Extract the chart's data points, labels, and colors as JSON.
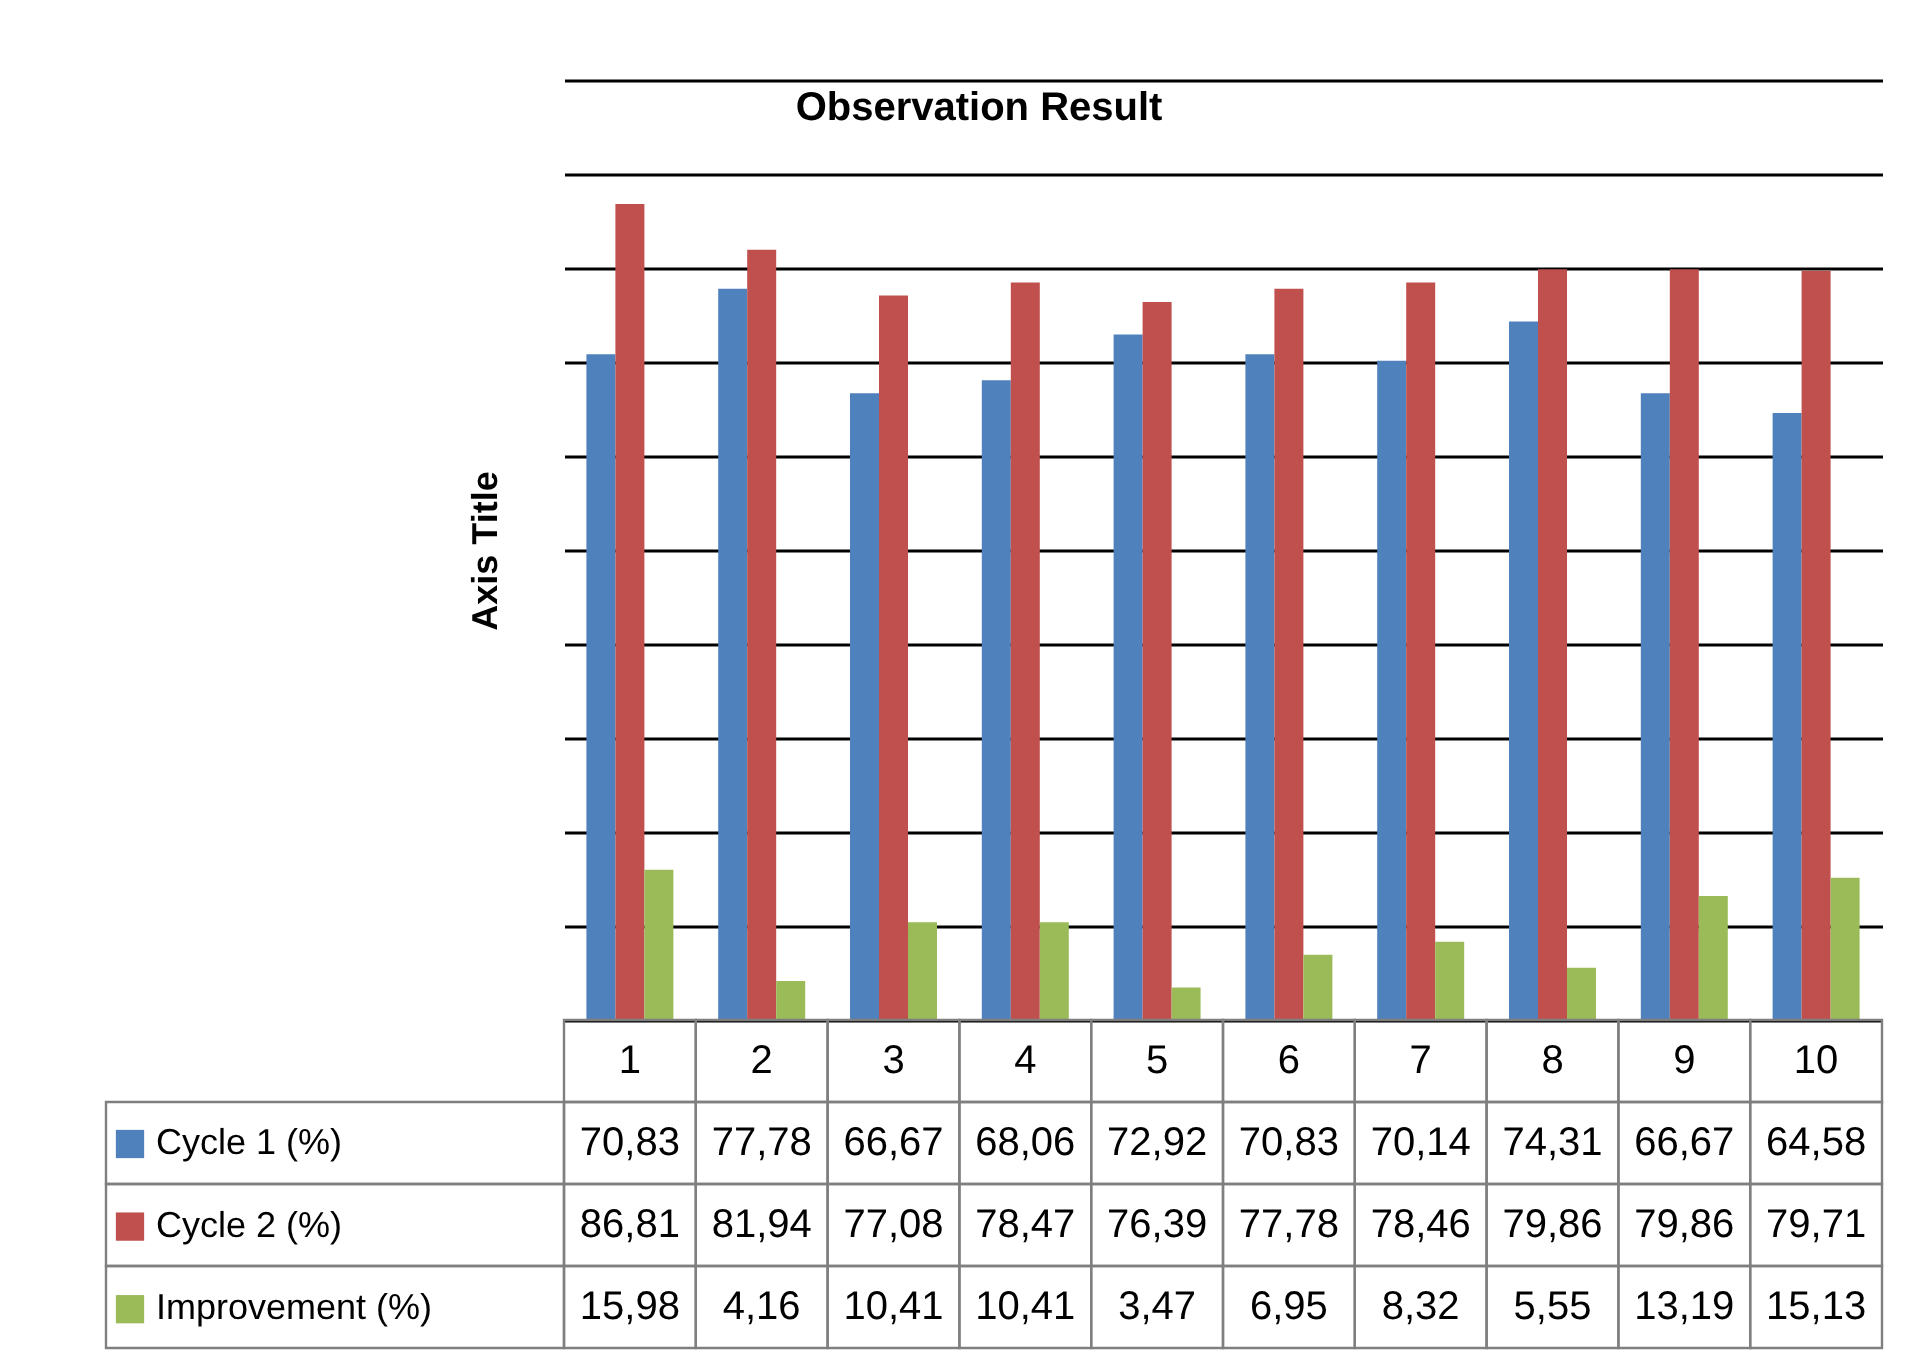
{
  "chart_data": {
    "type": "bar",
    "title": "Observation Result",
    "ylabel": "Axis Title",
    "categories": [
      "1",
      "2",
      "3",
      "4",
      "5",
      "6",
      "7",
      "8",
      "9",
      "10"
    ],
    "series": [
      {
        "name": "Cycle 1 (%)",
        "color": "#4f81bd",
        "values": [
          70.83,
          77.78,
          66.67,
          68.06,
          72.92,
          70.83,
          70.14,
          74.31,
          66.67,
          64.58
        ],
        "value_labels": [
          "70,83",
          "77,78",
          "66,67",
          "68,06",
          "72,92",
          "70,83",
          "70,14",
          "74,31",
          "66,67",
          "64,58"
        ]
      },
      {
        "name": "Cycle 2 (%)",
        "color": "#c0504d",
        "values": [
          86.81,
          81.94,
          77.08,
          78.47,
          76.39,
          77.78,
          78.46,
          79.86,
          79.86,
          79.71
        ],
        "value_labels": [
          "86,81",
          "81,94",
          "77,08",
          "78,47",
          "76,39",
          "77,78",
          "78,46",
          "79,86",
          "79,86",
          "79,71"
        ]
      },
      {
        "name": "Improvement (%)",
        "color": "#9bbb59",
        "values": [
          15.98,
          4.16,
          10.41,
          10.41,
          3.47,
          6.95,
          8.32,
          5.55,
          13.19,
          15.13
        ],
        "value_labels": [
          "15,98",
          "4,16",
          "10,41",
          "10,41",
          "3,47",
          "6,95",
          "8,32",
          "5,55",
          "13,19",
          "15,13"
        ]
      }
    ],
    "ylim": [
      0,
      100
    ],
    "yticks": [
      {
        "value": 0,
        "label": null
      },
      {
        "value": 10,
        "label": null
      },
      {
        "value": 20,
        "label": null
      },
      {
        "value": 30,
        "label": null
      },
      {
        "value": 40,
        "label": null
      },
      {
        "value": 50,
        "label": null
      },
      {
        "value": 60,
        "label": null
      },
      {
        "value": 70,
        "label": null
      },
      {
        "value": 80,
        "label": null
      },
      {
        "value": 90,
        "label": null
      },
      {
        "value": 100,
        "label": null
      }
    ],
    "tick_labels": "x",
    "grid": "y",
    "legend": "bottom left"
  }
}
